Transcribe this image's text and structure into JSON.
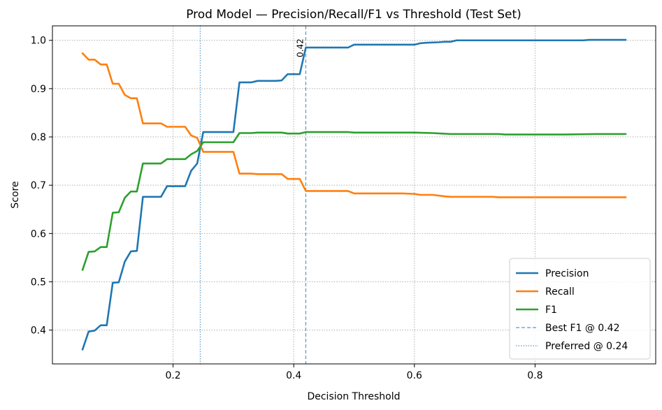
{
  "chart_data": {
    "type": "line",
    "title": "Prod Model — Precision/Recall/F1 vs Threshold (Test Set)",
    "xlabel": "Decision Threshold",
    "ylabel": "Score",
    "xlim": [
      0.0,
      1.0
    ],
    "ylim": [
      0.33,
      1.03
    ],
    "xticks": [
      0.2,
      0.4,
      0.6,
      0.8
    ],
    "xtick_labels": [
      "0.2",
      "0.4",
      "0.6",
      "0.8"
    ],
    "yticks": [
      0.4,
      0.5,
      0.6,
      0.7,
      0.8,
      0.9,
      1.0
    ],
    "ytick_labels": [
      "0.4",
      "0.5",
      "0.6",
      "0.7",
      "0.8",
      "0.9",
      "1.0"
    ],
    "grid": true,
    "legend_position": "bottom-right",
    "series": [
      {
        "name": "Precision",
        "color": "#1f77b4",
        "points": [
          [
            0.05,
            0.36
          ],
          [
            0.06,
            0.397
          ],
          [
            0.07,
            0.399
          ],
          [
            0.08,
            0.41
          ],
          [
            0.09,
            0.41
          ],
          [
            0.1,
            0.498
          ],
          [
            0.11,
            0.499
          ],
          [
            0.12,
            0.542
          ],
          [
            0.13,
            0.563
          ],
          [
            0.14,
            0.564
          ],
          [
            0.15,
            0.676
          ],
          [
            0.16,
            0.676
          ],
          [
            0.17,
            0.676
          ],
          [
            0.18,
            0.676
          ],
          [
            0.19,
            0.698
          ],
          [
            0.2,
            0.698
          ],
          [
            0.21,
            0.698
          ],
          [
            0.22,
            0.698
          ],
          [
            0.23,
            0.73
          ],
          [
            0.24,
            0.745
          ],
          [
            0.25,
            0.81
          ],
          [
            0.26,
            0.81
          ],
          [
            0.27,
            0.81
          ],
          [
            0.28,
            0.81
          ],
          [
            0.29,
            0.81
          ],
          [
            0.3,
            0.81
          ],
          [
            0.31,
            0.913
          ],
          [
            0.32,
            0.913
          ],
          [
            0.33,
            0.913
          ],
          [
            0.34,
            0.916
          ],
          [
            0.35,
            0.916
          ],
          [
            0.36,
            0.916
          ],
          [
            0.37,
            0.916
          ],
          [
            0.38,
            0.917
          ],
          [
            0.39,
            0.93
          ],
          [
            0.4,
            0.93
          ],
          [
            0.41,
            0.93
          ],
          [
            0.42,
            0.985
          ],
          [
            0.43,
            0.985
          ],
          [
            0.44,
            0.985
          ],
          [
            0.45,
            0.985
          ],
          [
            0.46,
            0.985
          ],
          [
            0.47,
            0.985
          ],
          [
            0.48,
            0.985
          ],
          [
            0.49,
            0.985
          ],
          [
            0.5,
            0.991
          ],
          [
            0.52,
            0.991
          ],
          [
            0.54,
            0.991
          ],
          [
            0.56,
            0.991
          ],
          [
            0.58,
            0.991
          ],
          [
            0.6,
            0.991
          ],
          [
            0.61,
            0.994
          ],
          [
            0.62,
            0.995
          ],
          [
            0.64,
            0.996
          ],
          [
            0.65,
            0.997
          ],
          [
            0.66,
            0.997
          ],
          [
            0.67,
            1.0
          ],
          [
            0.7,
            1.0
          ],
          [
            0.75,
            1.0
          ],
          [
            0.8,
            1.0
          ],
          [
            0.85,
            1.0
          ],
          [
            0.88,
            1.0
          ],
          [
            0.89,
            1.001
          ],
          [
            0.92,
            1.001
          ],
          [
            0.95,
            1.001
          ]
        ]
      },
      {
        "name": "Recall",
        "color": "#ff7f0e",
        "points": [
          [
            0.05,
            0.973
          ],
          [
            0.06,
            0.96
          ],
          [
            0.07,
            0.96
          ],
          [
            0.08,
            0.95
          ],
          [
            0.09,
            0.95
          ],
          [
            0.1,
            0.91
          ],
          [
            0.11,
            0.91
          ],
          [
            0.12,
            0.887
          ],
          [
            0.13,
            0.88
          ],
          [
            0.14,
            0.88
          ],
          [
            0.15,
            0.828
          ],
          [
            0.16,
            0.828
          ],
          [
            0.17,
            0.828
          ],
          [
            0.18,
            0.828
          ],
          [
            0.19,
            0.821
          ],
          [
            0.2,
            0.821
          ],
          [
            0.21,
            0.821
          ],
          [
            0.22,
            0.821
          ],
          [
            0.23,
            0.803
          ],
          [
            0.24,
            0.798
          ],
          [
            0.25,
            0.769
          ],
          [
            0.26,
            0.769
          ],
          [
            0.27,
            0.769
          ],
          [
            0.28,
            0.769
          ],
          [
            0.29,
            0.769
          ],
          [
            0.3,
            0.769
          ],
          [
            0.31,
            0.724
          ],
          [
            0.32,
            0.724
          ],
          [
            0.33,
            0.724
          ],
          [
            0.34,
            0.723
          ],
          [
            0.35,
            0.723
          ],
          [
            0.36,
            0.723
          ],
          [
            0.37,
            0.723
          ],
          [
            0.38,
            0.723
          ],
          [
            0.39,
            0.713
          ],
          [
            0.4,
            0.713
          ],
          [
            0.41,
            0.713
          ],
          [
            0.42,
            0.688
          ],
          [
            0.43,
            0.688
          ],
          [
            0.44,
            0.688
          ],
          [
            0.45,
            0.688
          ],
          [
            0.46,
            0.688
          ],
          [
            0.47,
            0.688
          ],
          [
            0.48,
            0.688
          ],
          [
            0.49,
            0.688
          ],
          [
            0.5,
            0.683
          ],
          [
            0.52,
            0.683
          ],
          [
            0.54,
            0.683
          ],
          [
            0.56,
            0.683
          ],
          [
            0.58,
            0.683
          ],
          [
            0.6,
            0.682
          ],
          [
            0.61,
            0.68
          ],
          [
            0.62,
            0.68
          ],
          [
            0.63,
            0.68
          ],
          [
            0.65,
            0.677
          ],
          [
            0.66,
            0.676
          ],
          [
            0.67,
            0.676
          ],
          [
            0.7,
            0.676
          ],
          [
            0.73,
            0.676
          ],
          [
            0.74,
            0.675
          ],
          [
            0.8,
            0.675
          ],
          [
            0.85,
            0.675
          ],
          [
            0.9,
            0.675
          ],
          [
            0.95,
            0.675
          ]
        ]
      },
      {
        "name": "F1",
        "color": "#2ca02c",
        "points": [
          [
            0.05,
            0.525
          ],
          [
            0.06,
            0.562
          ],
          [
            0.07,
            0.563
          ],
          [
            0.08,
            0.572
          ],
          [
            0.09,
            0.572
          ],
          [
            0.1,
            0.643
          ],
          [
            0.11,
            0.644
          ],
          [
            0.12,
            0.674
          ],
          [
            0.13,
            0.687
          ],
          [
            0.14,
            0.687
          ],
          [
            0.15,
            0.745
          ],
          [
            0.16,
            0.745
          ],
          [
            0.17,
            0.745
          ],
          [
            0.18,
            0.745
          ],
          [
            0.19,
            0.754
          ],
          [
            0.2,
            0.754
          ],
          [
            0.21,
            0.754
          ],
          [
            0.22,
            0.754
          ],
          [
            0.23,
            0.764
          ],
          [
            0.24,
            0.771
          ],
          [
            0.25,
            0.789
          ],
          [
            0.26,
            0.789
          ],
          [
            0.27,
            0.789
          ],
          [
            0.28,
            0.789
          ],
          [
            0.29,
            0.789
          ],
          [
            0.3,
            0.789
          ],
          [
            0.31,
            0.808
          ],
          [
            0.32,
            0.808
          ],
          [
            0.33,
            0.808
          ],
          [
            0.34,
            0.809
          ],
          [
            0.35,
            0.809
          ],
          [
            0.36,
            0.809
          ],
          [
            0.37,
            0.809
          ],
          [
            0.38,
            0.809
          ],
          [
            0.39,
            0.807
          ],
          [
            0.4,
            0.807
          ],
          [
            0.41,
            0.807
          ],
          [
            0.42,
            0.81
          ],
          [
            0.43,
            0.81
          ],
          [
            0.44,
            0.81
          ],
          [
            0.45,
            0.81
          ],
          [
            0.46,
            0.81
          ],
          [
            0.47,
            0.81
          ],
          [
            0.48,
            0.81
          ],
          [
            0.49,
            0.81
          ],
          [
            0.5,
            0.809
          ],
          [
            0.55,
            0.809
          ],
          [
            0.6,
            0.809
          ],
          [
            0.63,
            0.808
          ],
          [
            0.66,
            0.806
          ],
          [
            0.67,
            0.806
          ],
          [
            0.7,
            0.806
          ],
          [
            0.74,
            0.806
          ],
          [
            0.75,
            0.805
          ],
          [
            0.8,
            0.805
          ],
          [
            0.85,
            0.805
          ],
          [
            0.9,
            0.806
          ],
          [
            0.95,
            0.806
          ]
        ]
      }
    ],
    "vlines": [
      {
        "x": 0.42,
        "label": "Best F1 @ 0.42",
        "text": "0.42",
        "style": "dashed",
        "color": "#1f77b4"
      },
      {
        "x": 0.245,
        "label": "Preferred @ 0.24",
        "style": "dotted",
        "color": "#1f77b4"
      }
    ]
  }
}
